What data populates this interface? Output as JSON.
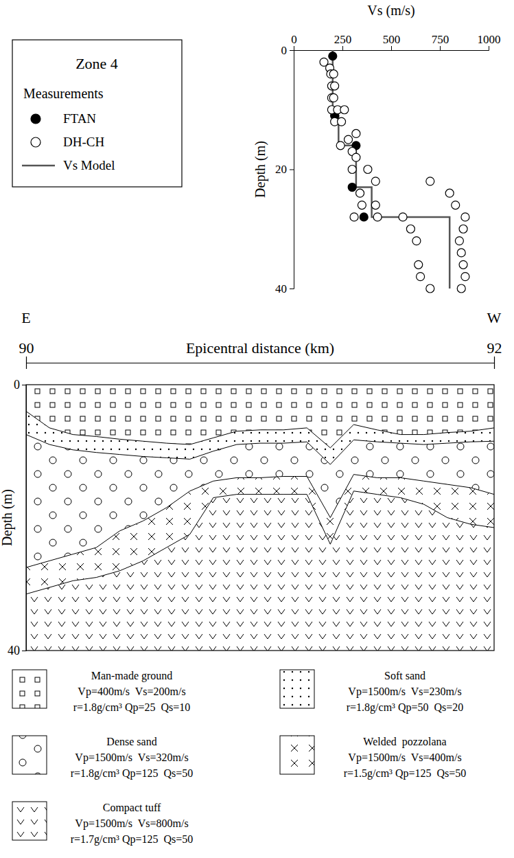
{
  "chart_data": [
    {
      "type": "scatter",
      "title": "Zone 4",
      "legend_title": "Measurements",
      "x_label": "Vs (m/s)",
      "y_label": "Depth (m)",
      "xlim": [
        0,
        1000
      ],
      "xticks": [
        0,
        250,
        500,
        750,
        1000
      ],
      "ylim": [
        0,
        40
      ],
      "yticks": [
        0,
        20,
        40
      ],
      "grid": false,
      "legend": "left",
      "series": [
        {
          "name": "FTAN",
          "type": "scatter",
          "marker": "filled-circle",
          "color": "#000000",
          "x": [
            200,
            210,
            320,
            300,
            360
          ],
          "values": [
            1,
            11,
            16,
            23,
            28
          ]
        },
        {
          "name": "DH-CH",
          "type": "scatter",
          "marker": "open-circle",
          "color": "#000000",
          "x": [
            155,
            185,
            190,
            205,
            195,
            210,
            195,
            205,
            195,
            225,
            260,
            210,
            245,
            240,
            280,
            320,
            300,
            320,
            300,
            380,
            420,
            340,
            350,
            420,
            310,
            430,
            560,
            600,
            630,
            700,
            800,
            830,
            880,
            870,
            850,
            860,
            640,
            870,
            650,
            880,
            700,
            860
          ],
          "values": [
            2,
            3,
            4,
            4,
            6,
            6,
            8,
            8,
            10,
            10,
            10,
            12,
            12,
            16,
            15,
            14,
            17,
            18,
            20,
            20,
            22,
            24,
            26,
            26,
            28,
            28,
            28,
            30,
            32,
            22,
            24,
            26,
            28,
            30,
            32,
            34,
            36,
            36,
            38,
            38,
            40,
            40
          ]
        },
        {
          "name": "Vs Model",
          "type": "line",
          "line_style": "solid",
          "color": "#555555",
          "x": [
            200,
            200,
            230,
            230,
            320,
            320,
            400,
            400,
            800,
            800
          ],
          "values": [
            0,
            11,
            11,
            16,
            16,
            23,
            23,
            28,
            28,
            40
          ]
        }
      ]
    },
    {
      "type": "area",
      "stacked": true,
      "legend": "bottom",
      "annotations": [
        "E",
        "W"
      ],
      "x_label": "Epicentral distance (km)",
      "y_label": "Depth (m)",
      "xlim": [
        90,
        92
      ],
      "xticks": [
        90,
        92
      ],
      "ylim": [
        0,
        40
      ],
      "yticks": [
        0,
        40
      ],
      "x": [
        90,
        90.1,
        90.2,
        90.3,
        90.4,
        90.5,
        90.6,
        90.7,
        90.8,
        90.9,
        91,
        91.1,
        91.2,
        91.3,
        91.4,
        91.5,
        91.6,
        91.7,
        91.8,
        91.9,
        92
      ],
      "series": [
        {
          "name": "Man-made ground",
          "marker": "square",
          "properties": [
            "Vp=400m/s  Vs=200m/s",
            "r=1.8g/cm³ Qp=25  Qs=10"
          ],
          "values": [
            4,
            6.5,
            7.5,
            7.8,
            8.2,
            8.5,
            8.8,
            9,
            8,
            7,
            6.8,
            6.8,
            6.5,
            9.5,
            6,
            6.8,
            7.5,
            7.5,
            7.2,
            7,
            6.5
          ]
        },
        {
          "name": "Soft sand",
          "marker": "dot",
          "properties": [
            "Vp=1500m/s  Vs=230m/s",
            "r=1.8g/cm³ Qp=50  Qs=20"
          ],
          "values": [
            3.5,
            2.5,
            2.3,
            2.4,
            2.3,
            2.3,
            2.2,
            2.2,
            2,
            2,
            2,
            2,
            2.1,
            2.5,
            2.3,
            1.8,
            1.3,
            1.5,
            1.6,
            1.6,
            2
          ]
        },
        {
          "name": "Dense sand",
          "marker": "circle",
          "properties": [
            "Vp=1500m/s  Vs=320m/s",
            "r=1.8g/cm³ Qp=125  Qs=50"
          ],
          "values": [
            20,
            17.5,
            15.7,
            14.3,
            11.5,
            9.7,
            7.5,
            4.8,
            4.5,
            5,
            5.2,
            5,
            5.2,
            8,
            5.2,
            5.4,
            5.2,
            5.5,
            6.2,
            6.9,
            8
          ]
        },
        {
          "name": "Welded  pozzolana",
          "marker": "cross",
          "properties": [
            "Vp=1500m/s  Vs=400m/s",
            "r=1.5g/cm³ Qp=125  Qs=50"
          ],
          "values": [
            4,
            4,
            4,
            4.5,
            6,
            6,
            6,
            6.5,
            2.5,
            2.5,
            2.5,
            2.7,
            2.7,
            4,
            2.5,
            2.5,
            3,
            3.5,
            5,
            5.5,
            5
          ]
        },
        {
          "name": "Compact tuff",
          "marker": "v",
          "properties": [
            "Vp=1500m/s  Vs=800m/s",
            "r=1.7g/cm³ Qp=125  Qs=50"
          ],
          "values": [
            8.5,
            9.5,
            10.5,
            11,
            12,
            13.5,
            15.5,
            17.5,
            23,
            23.5,
            23.5,
            23.5,
            23.5,
            16,
            24,
            23.5,
            23,
            22,
            20,
            19,
            18.5
          ]
        }
      ]
    }
  ]
}
